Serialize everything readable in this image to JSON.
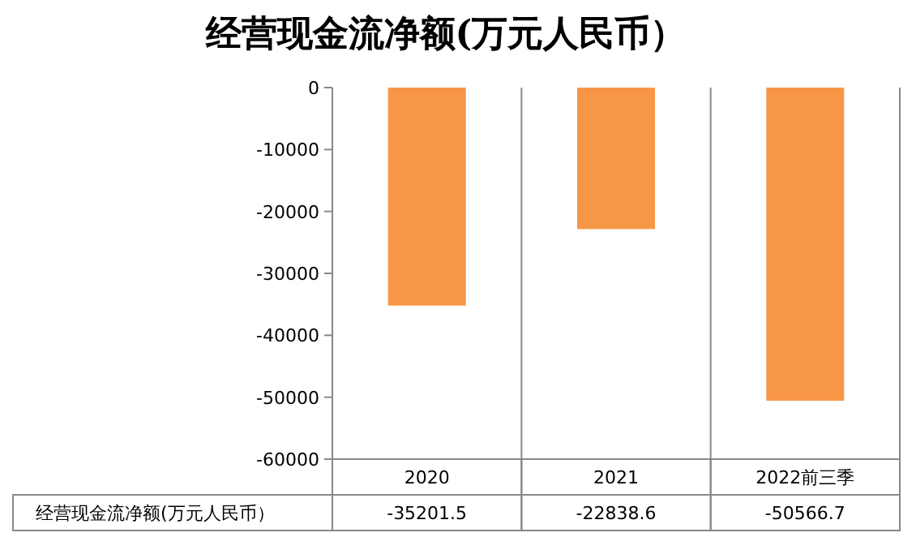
{
  "chart_data": {
    "type": "bar",
    "title": "经营现金流净额(万元人民币）",
    "categories": [
      "2020",
      "2021",
      "2022前三季"
    ],
    "series": [
      {
        "name": "经营现金流净额(万元人民币）",
        "color": "#f79646",
        "values": [
          -35201.5,
          -22838.6,
          -50566.7
        ]
      }
    ],
    "ylim": [
      -60000,
      0
    ],
    "yticks": [
      0,
      -10000,
      -20000,
      -30000,
      -40000,
      -50000,
      -60000
    ],
    "data_labels": true
  }
}
